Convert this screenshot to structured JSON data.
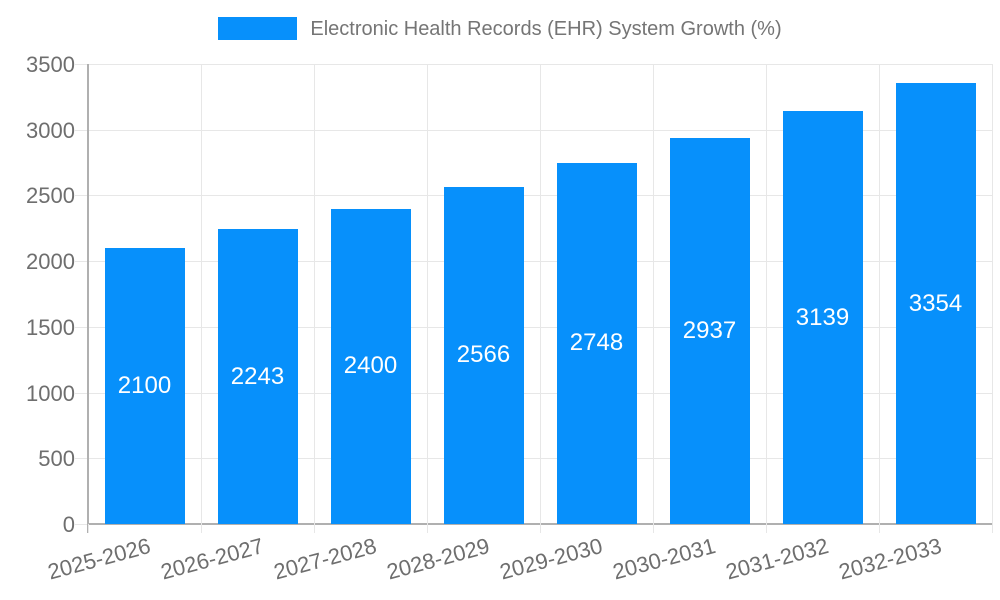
{
  "chart_data": {
    "type": "bar",
    "title": "Electronic Health Records (EHR) System Growth (%)",
    "categories": [
      "2025-2026",
      "2026-2027",
      "2027-2028",
      "2028-2029",
      "2029-2030",
      "2030-2031",
      "2031-2032",
      "2032-2033"
    ],
    "series": [
      {
        "name": "Electronic Health Records (EHR) System Growth (%)",
        "values": [
          2100,
          2243,
          2400,
          2566,
          2748,
          2937,
          3139,
          3354
        ]
      }
    ],
    "xlabel": "",
    "ylabel": "",
    "ylim": [
      0,
      3500
    ],
    "yticks": [
      0,
      500,
      1000,
      1500,
      2000,
      2500,
      3000,
      3500
    ],
    "grid": true,
    "legend_position": "top-center",
    "bar_labels_inside": true,
    "colors": {
      "bar": "#0790fb",
      "bar_value_text": "#ffffff",
      "axis_text": "#6e6e6e",
      "legend_text": "#757575",
      "gridline": "#e7e7e7",
      "axis_line": "#b0b0b0"
    }
  }
}
